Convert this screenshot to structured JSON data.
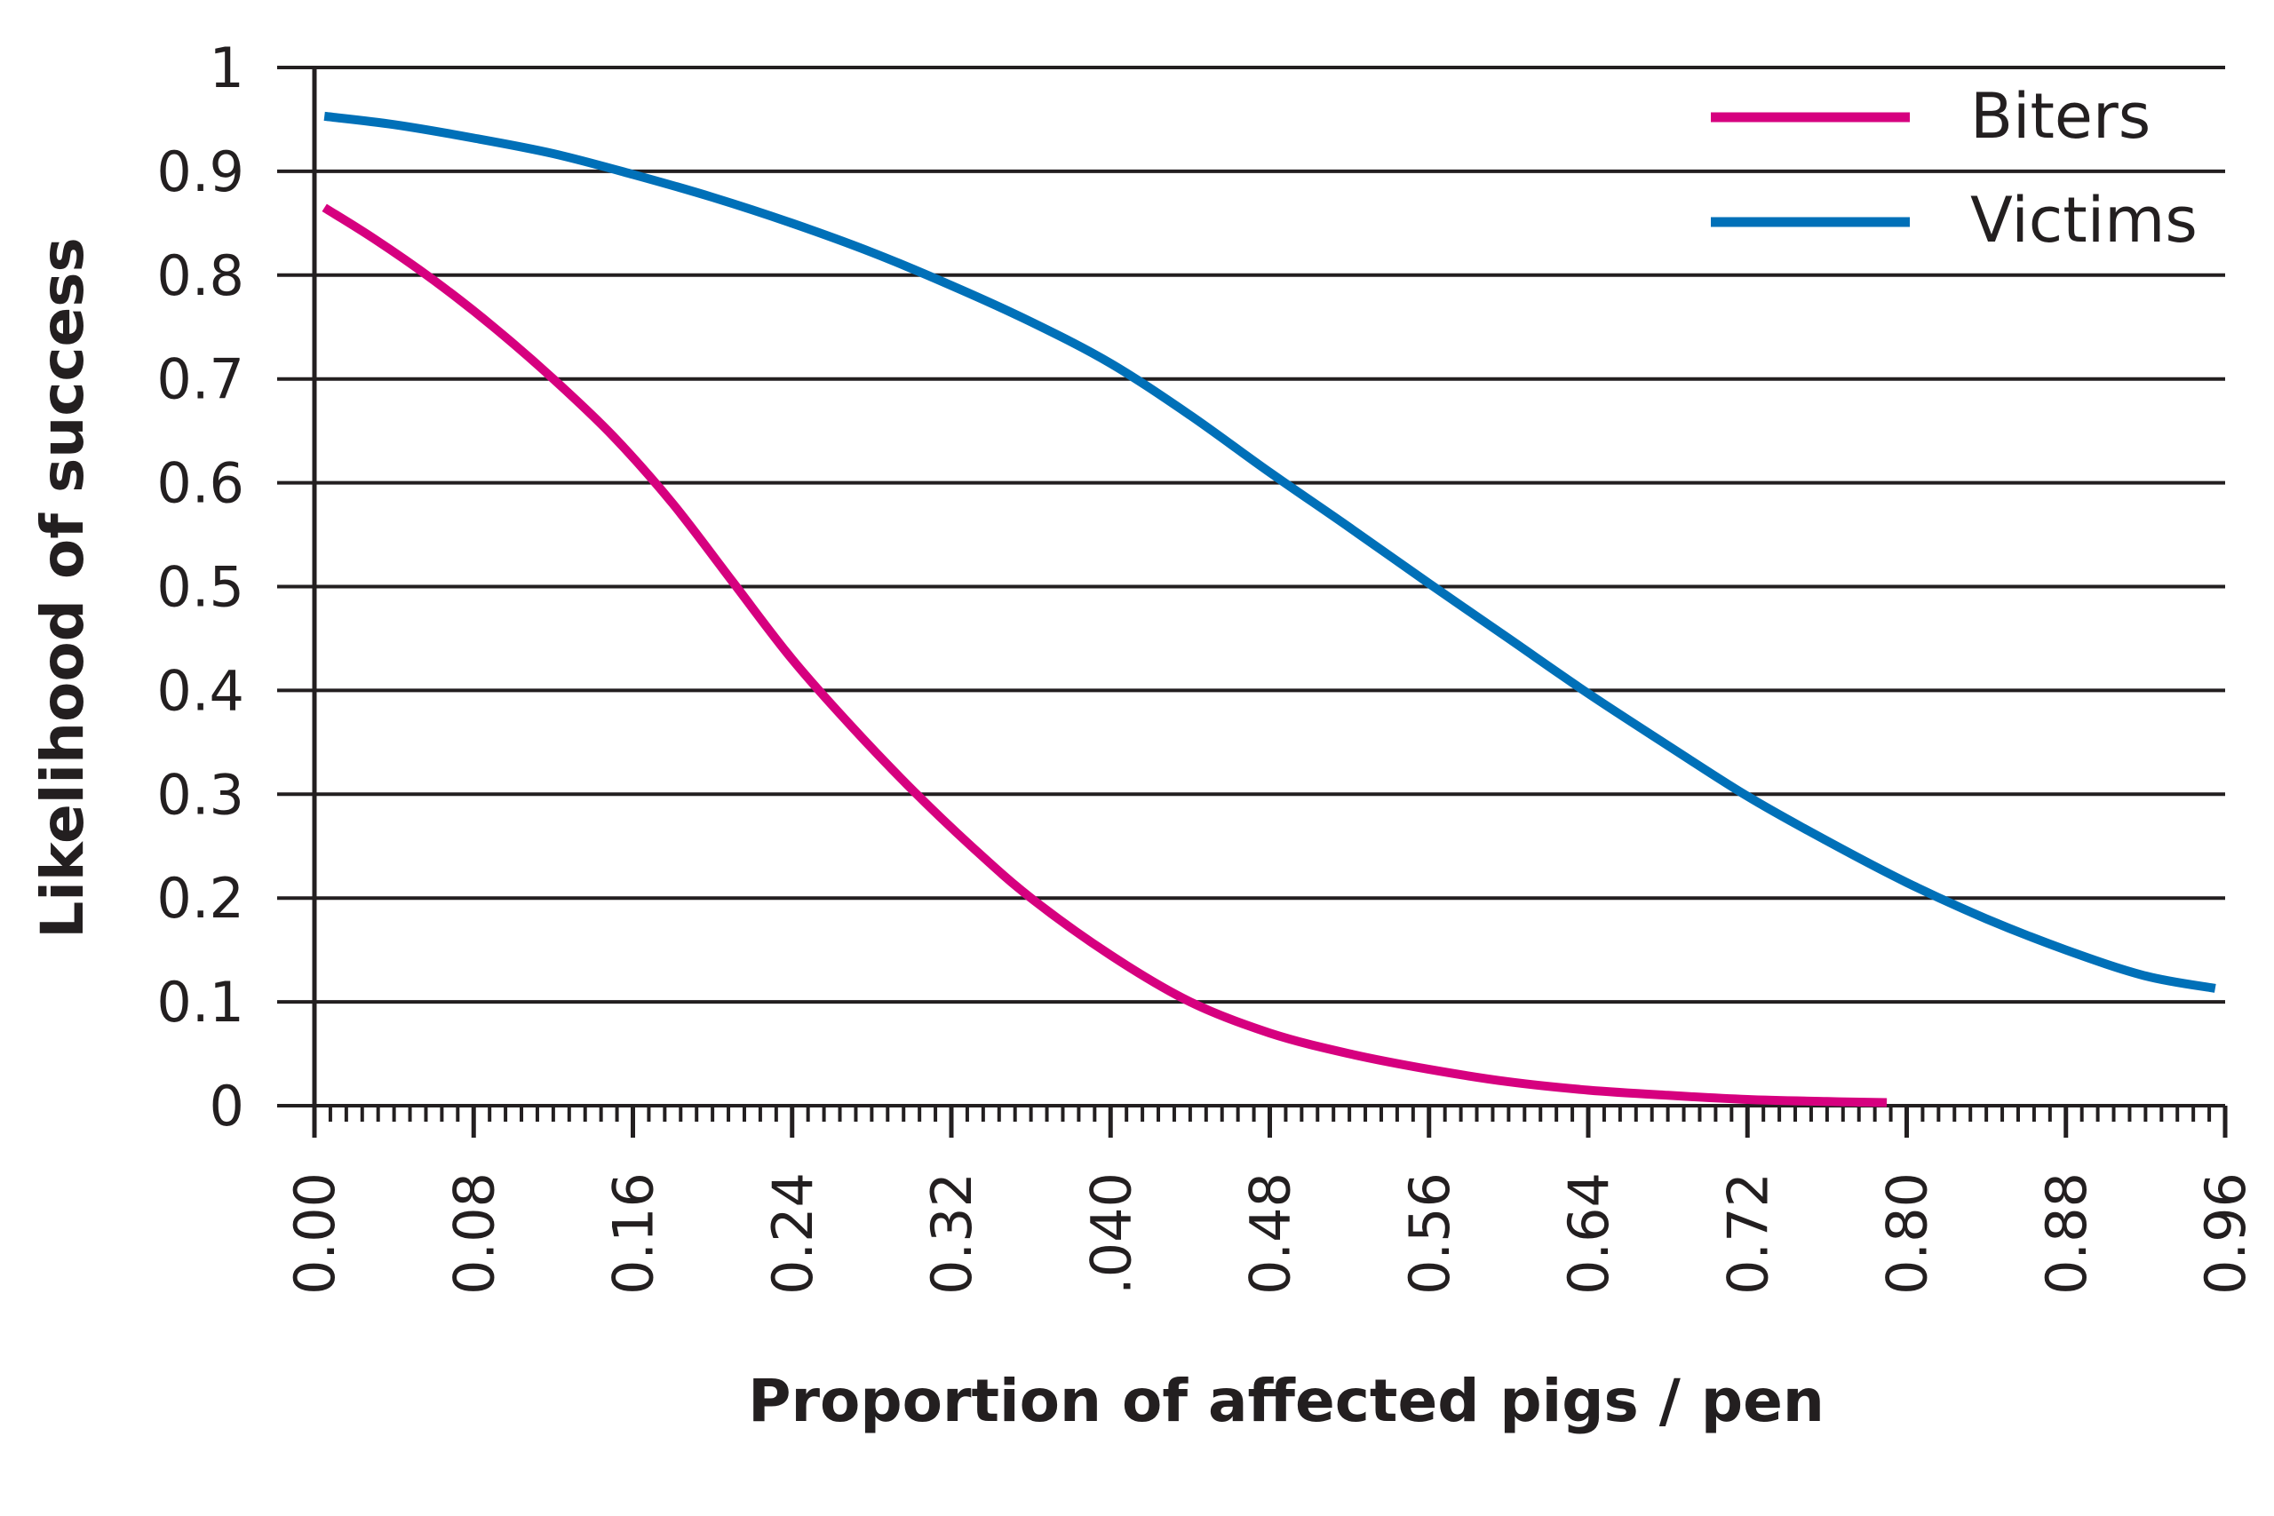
{
  "chart_data": {
    "type": "line",
    "xlabel": "Proportion of affected pigs / pen",
    "ylabel": "Likelihood of success",
    "xlim": [
      0,
      0.96
    ],
    "ylim": [
      0,
      1
    ],
    "x_ticks": [
      "0.00",
      "0.08",
      "0.16",
      "0.24",
      "0.32",
      ".040",
      "0.48",
      "0.56",
      "0.64",
      "0.72",
      "0.80",
      "0.88",
      "0.96"
    ],
    "y_ticks": [
      "0",
      "0.1",
      "0.2",
      "0.3",
      "0.4",
      "0.5",
      "0.6",
      "0.7",
      "0.8",
      "0.9",
      "1"
    ],
    "grid": "horizontal",
    "legend_position": "top-right",
    "series": [
      {
        "name": "Biters",
        "color": "#d6007f",
        "x": [
          0.005,
          0.03,
          0.06,
          0.09,
          0.12,
          0.15,
          0.18,
          0.21,
          0.24,
          0.27,
          0.3,
          0.33,
          0.36,
          0.4,
          0.44,
          0.48,
          0.52,
          0.56,
          0.6,
          0.64,
          0.68,
          0.72,
          0.76,
          0.79
        ],
        "y": [
          0.865,
          0.835,
          0.795,
          0.75,
          0.7,
          0.645,
          0.58,
          0.505,
          0.43,
          0.365,
          0.305,
          0.25,
          0.2,
          0.145,
          0.1,
          0.07,
          0.05,
          0.035,
          0.023,
          0.015,
          0.01,
          0.006,
          0.004,
          0.003
        ]
      },
      {
        "name": "Victims",
        "color": "#0070b8",
        "x": [
          0.005,
          0.04,
          0.08,
          0.12,
          0.16,
          0.2,
          0.24,
          0.28,
          0.32,
          0.36,
          0.4,
          0.44,
          0.48,
          0.52,
          0.56,
          0.6,
          0.64,
          0.68,
          0.72,
          0.76,
          0.8,
          0.84,
          0.88,
          0.92,
          0.955
        ],
        "y": [
          0.953,
          0.945,
          0.932,
          0.917,
          0.897,
          0.875,
          0.85,
          0.822,
          0.79,
          0.755,
          0.715,
          0.665,
          0.61,
          0.557,
          0.503,
          0.45,
          0.397,
          0.347,
          0.298,
          0.255,
          0.215,
          0.18,
          0.15,
          0.125,
          0.113
        ]
      }
    ]
  }
}
